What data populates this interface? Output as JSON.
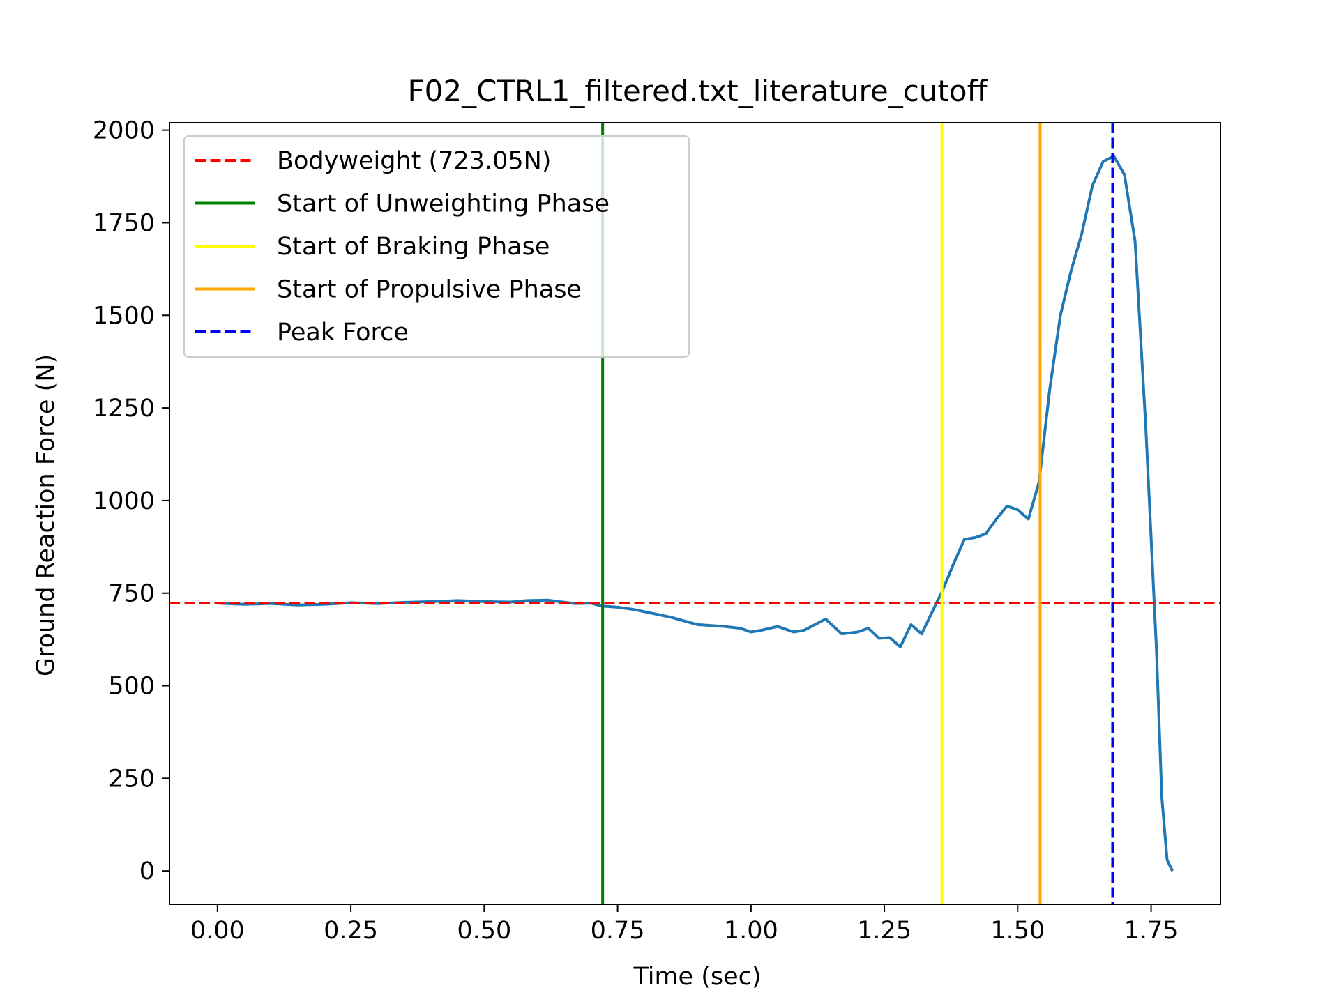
{
  "chart_data": {
    "type": "line",
    "title": "F02_CTRL1_filtered.txt_literature_cutoff",
    "xlabel": "Time (sec)",
    "ylabel": "Ground Reaction Force (N)",
    "xlim": [
      -0.09,
      1.88
    ],
    "ylim": [
      -90,
      2020
    ],
    "x_ticks": [
      0.0,
      0.25,
      0.5,
      0.75,
      1.0,
      1.25,
      1.5,
      1.75
    ],
    "x_tick_labels": [
      "0.00",
      "0.25",
      "0.50",
      "0.75",
      "1.00",
      "1.25",
      "1.50",
      "1.75"
    ],
    "y_ticks": [
      0,
      250,
      500,
      750,
      1000,
      1250,
      1500,
      1750,
      2000
    ],
    "y_tick_labels": [
      "0",
      "250",
      "500",
      "750",
      "1000",
      "1250",
      "1500",
      "1750",
      "2000"
    ],
    "grid": false,
    "legend_position": "top-left",
    "series": [
      {
        "color": "#1f77b4",
        "x": [
          0.0,
          0.05,
          0.1,
          0.15,
          0.2,
          0.25,
          0.3,
          0.35,
          0.4,
          0.45,
          0.5,
          0.55,
          0.58,
          0.62,
          0.64,
          0.67,
          0.7,
          0.72,
          0.75,
          0.78,
          0.8,
          0.85,
          0.9,
          0.95,
          0.98,
          1.0,
          1.02,
          1.05,
          1.08,
          1.1,
          1.14,
          1.17,
          1.2,
          1.22,
          1.24,
          1.26,
          1.28,
          1.3,
          1.32,
          1.34,
          1.36,
          1.38,
          1.4,
          1.42,
          1.44,
          1.46,
          1.48,
          1.5,
          1.52,
          1.54,
          1.56,
          1.58,
          1.6,
          1.62,
          1.64,
          1.66,
          1.68,
          1.7,
          1.72,
          1.74,
          1.76,
          1.77,
          1.78,
          1.79
        ],
        "y": [
          723,
          720,
          722,
          718,
          720,
          724,
          722,
          725,
          727,
          730,
          727,
          726,
          730,
          731,
          727,
          722,
          723,
          715,
          712,
          706,
          700,
          685,
          665,
          660,
          655,
          645,
          650,
          660,
          645,
          650,
          680,
          640,
          645,
          655,
          628,
          630,
          605,
          665,
          640,
          700,
          760,
          830,
          895,
          900,
          910,
          950,
          985,
          975,
          950,
          1050,
          1300,
          1500,
          1620,
          1720,
          1850,
          1915,
          1930,
          1880,
          1700,
          1200,
          600,
          200,
          30,
          0
        ]
      }
    ],
    "reference_lines": [
      {
        "orientation": "horizontal",
        "value": 723.05,
        "style": "dashed",
        "color": "#ff0000",
        "label": "Bodyweight (723.05N)"
      },
      {
        "orientation": "vertical",
        "value": 0.722,
        "style": "solid",
        "color": "#008000",
        "label": "Start of Unweighting Phase"
      },
      {
        "orientation": "vertical",
        "value": 1.358,
        "style": "solid",
        "color": "#ffff00",
        "label": "Start of Braking Phase"
      },
      {
        "orientation": "vertical",
        "value": 1.542,
        "style": "solid",
        "color": "#ffa500",
        "label": "Start of Propulsive Phase"
      },
      {
        "orientation": "vertical",
        "value": 1.678,
        "style": "dashed",
        "color": "#0000ff",
        "label": "Peak Force"
      }
    ]
  }
}
